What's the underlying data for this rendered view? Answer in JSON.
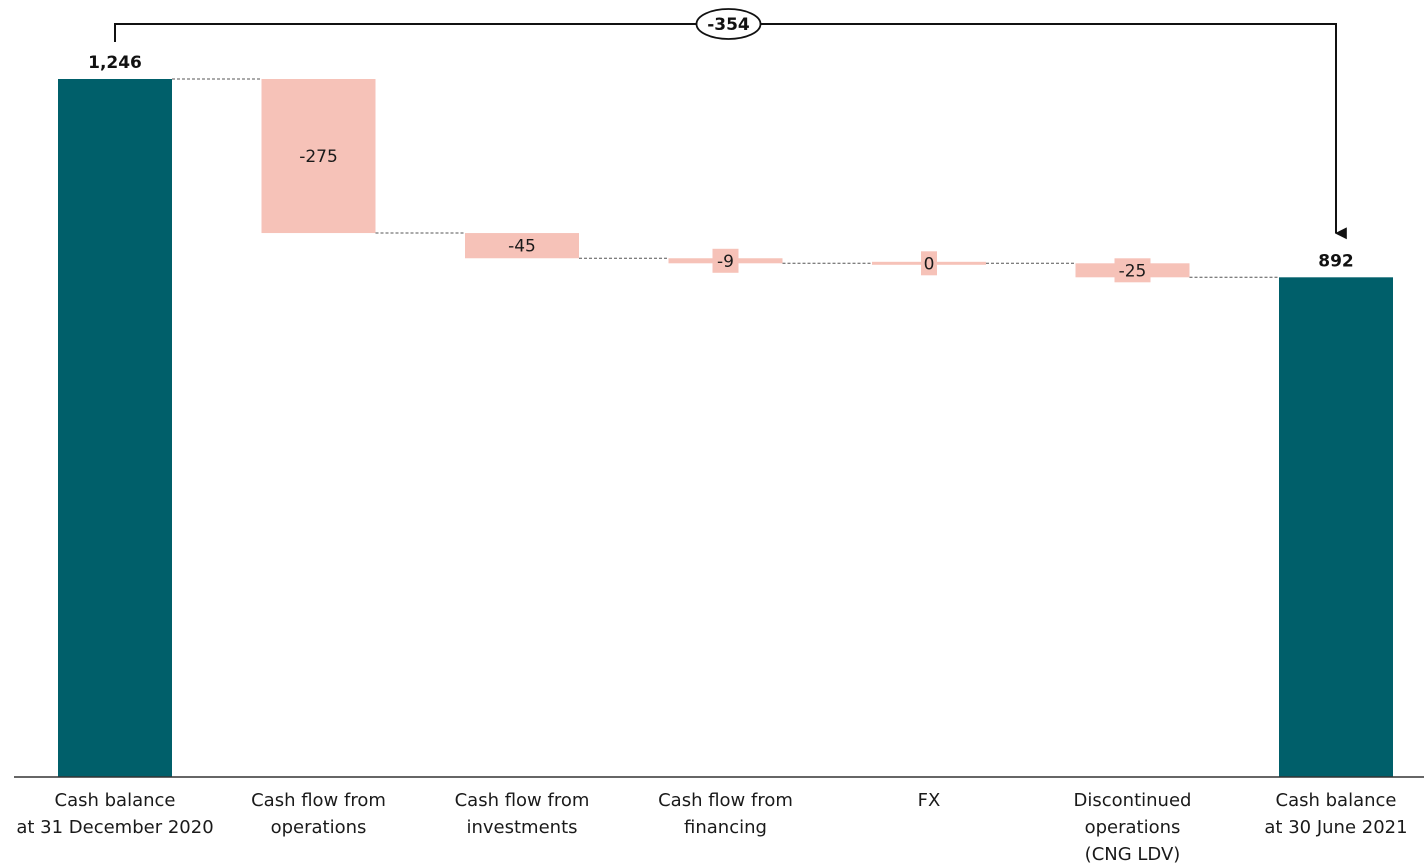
{
  "chart_data": {
    "type": "waterfall",
    "categories": [
      [
        "Cash balance",
        "at 31 December 2020"
      ],
      [
        "Cash flow from",
        "operations"
      ],
      [
        "Cash flow from",
        "investments"
      ],
      [
        "Cash flow from",
        "financing"
      ],
      [
        "FX"
      ],
      [
        "Discontinued",
        "operations",
        "(CNG LDV)"
      ],
      [
        "Cash balance",
        "at 30 June 2021"
      ]
    ],
    "bars": [
      {
        "kind": "total",
        "value": 1246,
        "label": "1,246"
      },
      {
        "kind": "delta",
        "value": -275,
        "label": "-275"
      },
      {
        "kind": "delta",
        "value": -45,
        "label": "-45"
      },
      {
        "kind": "delta",
        "value": -9,
        "label": "-9"
      },
      {
        "kind": "delta",
        "value": 0,
        "label": "0"
      },
      {
        "kind": "delta",
        "value": -25,
        "label": "-25"
      },
      {
        "kind": "total",
        "value": 892,
        "label": "892"
      }
    ],
    "total_change": {
      "value": -354,
      "label": "-354",
      "from": 0,
      "to": 6
    },
    "ylim": [
      0,
      1246
    ],
    "colors": {
      "total": "#005f6a",
      "delta": "#f6c2b8",
      "axis": "#333333",
      "connector": "#555555",
      "text": "#1a1a1a"
    },
    "grid": false,
    "legend": "none"
  }
}
